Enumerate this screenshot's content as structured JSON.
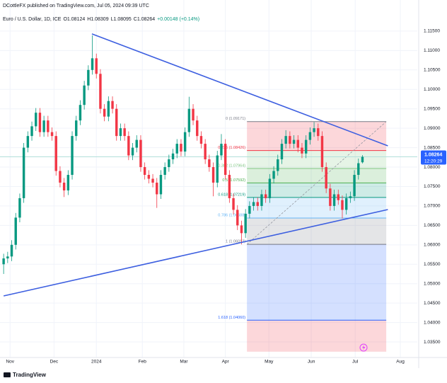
{
  "chart_data": {
    "type": "candlestick",
    "author_line": "DCottleFX published on TradingView.com, Jul 05, 2024 09:39 UTC",
    "symbol_line": [
      "Euro / U.S. Dollar, 1D, ICE",
      "O1.08124",
      "H1.08309",
      "L1.08095",
      "C1.08264",
      "+0.00148 (+0.14%)"
    ],
    "up_color": "#089981",
    "down_color": "#f23645",
    "open": [
      1.055,
      1.0565,
      1.057,
      1.06,
      1.067,
      1.072,
      1.085,
      1.088,
      1.0905,
      1.094,
      1.089,
      1.092,
      1.089,
      1.088,
      1.079,
      1.076,
      1.074,
      1.078,
      1.088,
      1.092,
      1.096,
      1.101,
      1.105,
      1.108,
      1.104,
      1.095,
      1.093,
      1.097,
      1.095,
      1.088,
      1.09,
      1.088,
      1.083,
      1.085,
      1.087,
      1.08,
      1.078,
      1.077,
      1.076,
      1.073,
      1.078,
      1.08,
      1.082,
      1.0835,
      1.086,
      1.084,
      1.089,
      1.095,
      1.092,
      1.088,
      1.086,
      1.082,
      1.08,
      1.076,
      1.083,
      1.086,
      1.078,
      1.072,
      1.069,
      1.065,
      1.063,
      1.068,
      1.07,
      1.071,
      1.07,
      1.073,
      1.072,
      1.077,
      1.079,
      1.082,
      1.086,
      1.088,
      1.086,
      1.087,
      1.085,
      1.0835,
      1.087,
      1.089,
      1.09,
      1.088,
      1.08,
      1.0745,
      1.07,
      1.073,
      1.0715,
      1.069,
      1.072,
      1.0725,
      1.078,
      1.08124
    ],
    "high": [
      1.0577,
      1.0582,
      1.0612,
      1.0682,
      1.0732,
      1.0862,
      1.0892,
      1.0917,
      1.0952,
      1.0952,
      1.0932,
      1.0932,
      1.0902,
      1.0892,
      1.0802,
      1.0772,
      1.0792,
      1.0892,
      1.0932,
      1.0972,
      1.1022,
      1.1062,
      1.1139,
      1.1092,
      1.1052,
      1.0962,
      1.0982,
      1.0982,
      1.0962,
      1.0912,
      1.0912,
      1.0892,
      1.0862,
      1.0882,
      1.0882,
      1.0812,
      1.0792,
      1.0782,
      1.0772,
      1.0792,
      1.0812,
      1.0832,
      1.0847,
      1.0872,
      1.0872,
      1.0902,
      1.0981,
      1.0962,
      1.0932,
      1.0892,
      1.0872,
      1.0832,
      1.0812,
      1.0842,
      1.0885,
      1.0872,
      1.0792,
      1.0732,
      1.0702,
      1.0662,
      1.0692,
      1.0712,
      1.0722,
      1.0722,
      1.0742,
      1.0742,
      1.0782,
      1.0802,
      1.0832,
      1.0872,
      1.0895,
      1.0892,
      1.0882,
      1.0882,
      1.0862,
      1.0882,
      1.0902,
      1.0916,
      1.0912,
      1.0892,
      1.0812,
      1.0757,
      1.0742,
      1.0742,
      1.0727,
      1.0732,
      1.0737,
      1.0792,
      1.0822,
      1.08309
    ],
    "low": [
      1.0525,
      1.0553,
      1.0558,
      1.0588,
      1.0658,
      1.0708,
      1.0838,
      1.0868,
      1.0893,
      1.0878,
      1.0878,
      1.0878,
      1.0868,
      1.0778,
      1.0748,
      1.0723,
      1.0728,
      1.0768,
      1.0868,
      1.0908,
      1.0948,
      1.0998,
      1.1038,
      1.1028,
      1.0938,
      1.0918,
      1.0918,
      1.0938,
      1.0868,
      1.0868,
      1.0868,
      1.0818,
      1.0818,
      1.0838,
      1.0788,
      1.0768,
      1.0758,
      1.0748,
      1.0695,
      1.0718,
      1.0768,
      1.0788,
      1.0808,
      1.0823,
      1.0828,
      1.0828,
      1.0878,
      1.0908,
      1.0868,
      1.0848,
      1.0808,
      1.0788,
      1.0725,
      1.0748,
      1.0818,
      1.0768,
      1.0708,
      1.0678,
      1.0638,
      1.0601,
      1.0618,
      1.0668,
      1.0688,
      1.0688,
      1.0688,
      1.0708,
      1.0708,
      1.0758,
      1.0778,
      1.0808,
      1.0848,
      1.0848,
      1.0848,
      1.0838,
      1.0823,
      1.0823,
      1.0858,
      1.0878,
      1.0868,
      1.0788,
      1.0733,
      1.0688,
      1.0688,
      1.0703,
      1.0668,
      1.0678,
      1.0708,
      1.0713,
      1.0768,
      1.08095
    ],
    "close": [
      1.0565,
      1.057,
      1.06,
      1.067,
      1.072,
      1.085,
      1.088,
      1.0905,
      1.094,
      1.089,
      1.092,
      1.089,
      1.088,
      1.079,
      1.076,
      1.074,
      1.078,
      1.088,
      1.092,
      1.096,
      1.101,
      1.105,
      1.108,
      1.104,
      1.095,
      1.093,
      1.097,
      1.095,
      1.088,
      1.09,
      1.088,
      1.083,
      1.085,
      1.087,
      1.08,
      1.078,
      1.077,
      1.076,
      1.073,
      1.078,
      1.08,
      1.082,
      1.0835,
      1.086,
      1.084,
      1.089,
      1.095,
      1.092,
      1.088,
      1.086,
      1.082,
      1.08,
      1.076,
      1.083,
      1.086,
      1.078,
      1.072,
      1.069,
      1.065,
      1.063,
      1.068,
      1.07,
      1.071,
      1.07,
      1.073,
      1.072,
      1.077,
      1.079,
      1.082,
      1.086,
      1.088,
      1.086,
      1.087,
      1.085,
      1.0835,
      1.087,
      1.089,
      1.09,
      1.088,
      1.08,
      1.0745,
      1.07,
      1.073,
      1.0715,
      1.069,
      1.072,
      1.0725,
      1.078,
      1.081,
      1.08264
    ],
    "xlim": [
      -0.9,
      102.6
    ],
    "ylim": [
      1.031,
      1.123
    ],
    "xticks": [
      {
        "value": 1.6,
        "label": "Nov"
      },
      {
        "value": 12.5,
        "label": "Dec"
      },
      {
        "value": 23,
        "label": "2024"
      },
      {
        "value": 34.4,
        "label": "Feb"
      },
      {
        "value": 44.7,
        "label": "Mar"
      },
      {
        "value": 55,
        "label": "Apr"
      },
      {
        "value": 65.8,
        "label": "May"
      },
      {
        "value": 76.3,
        "label": "Jun"
      },
      {
        "value": 87.2,
        "label": "Jul"
      },
      {
        "value": 98.4,
        "label": "Aug"
      }
    ],
    "yticks": [
      {
        "value": 1.035,
        "label": "1.03500"
      },
      {
        "value": 1.04,
        "label": "1.04000"
      },
      {
        "value": 1.045,
        "label": "1.04500"
      },
      {
        "value": 1.05,
        "label": "1.05000"
      },
      {
        "value": 1.055,
        "label": "1.05500"
      },
      {
        "value": 1.06,
        "label": "1.06000"
      },
      {
        "value": 1.065,
        "label": "1.06500"
      },
      {
        "value": 1.07,
        "label": "1.07000"
      },
      {
        "value": 1.075,
        "label": "1.07500"
      },
      {
        "value": 1.08,
        "label": "1.08000"
      },
      {
        "value": 1.085,
        "label": "1.08500"
      },
      {
        "value": 1.09,
        "label": "1.09000"
      },
      {
        "value": 1.095,
        "label": "1.09500"
      },
      {
        "value": 1.1,
        "label": "1.10000"
      },
      {
        "value": 1.105,
        "label": "1.10500"
      },
      {
        "value": 1.11,
        "label": "1.11000"
      },
      {
        "value": 1.115,
        "label": "1.11500"
      }
    ],
    "grid": true,
    "trendlines": [
      {
        "color": "#3d5fe0",
        "start": {
          "x": 21.9,
          "y": 1.11427
        },
        "end": {
          "x": 95.3,
          "y": 1.08548
        }
      },
      {
        "color": "#3d5fe0",
        "start": {
          "x": 0,
          "y": 1.04685
        },
        "end": {
          "x": 95.3,
          "y": 1.06908
        }
      }
    ],
    "fib": {
      "start_x": 60.35,
      "end_x": 94.9,
      "extend_to": 1.0325,
      "levels": [
        {
          "label": "0 (1.09171)",
          "price": 1.09171,
          "color": "#787b86",
          "fill": "rgba(242,54,69,0.2)"
        },
        {
          "label": "0.236 (1.08426)",
          "price": 1.08426,
          "color": "#f23645",
          "fill": "rgba(129,199,132,0.2)"
        },
        {
          "label": "0.382 (1.07964)",
          "price": 1.07964,
          "color": "#81c784",
          "fill": "rgba(76,175,80,0.2)"
        },
        {
          "label": "0.5 (1.07592)",
          "price": 1.07592,
          "color": "#4caf50",
          "fill": "rgba(8,153,129,0.2)"
        },
        {
          "label": "0.618 (1.07219)",
          "price": 1.07219,
          "color": "#089981",
          "fill": "rgba(100,181,246,0.2)"
        },
        {
          "label": "0.786 (1.06688)",
          "price": 1.06688,
          "color": "#64b5f6",
          "fill": "rgba(120,123,134,0.2)"
        },
        {
          "label": "1 (1.06012)",
          "price": 1.06012,
          "color": "#787b86",
          "fill": "rgba(41,98,255,0.2)"
        },
        {
          "label": "1.618 (1.04060)",
          "price": 1.0406,
          "color": "#2962ff",
          "fill": "rgba(242,54,69,0.2)"
        }
      ]
    },
    "last_price": {
      "value": 1.08264,
      "label": "1.08264",
      "countdown": "12:20:29",
      "color": "#2962ff",
      "line_color": "#b2dfdb"
    },
    "logo": "TradingView"
  }
}
